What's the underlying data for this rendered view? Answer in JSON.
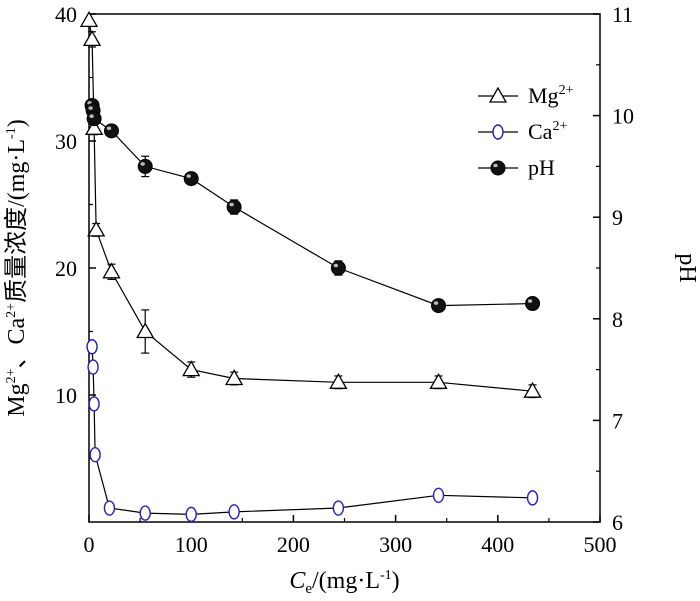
{
  "chart_data": {
    "type": "line",
    "x_axis": {
      "title_main": "C",
      "title_sub": "e",
      "title_rest": "/(mg·L",
      "title_sup": "-1",
      "title_end": ")",
      "range": [
        0,
        500
      ],
      "ticks": [
        "0",
        "100",
        "200",
        "300",
        "400",
        "500"
      ]
    },
    "y_axis_left": {
      "title_parts": [
        "Mg",
        "2+",
        "、Ca",
        "2+",
        "质量浓度/(mg·L",
        "-1",
        ")"
      ],
      "range": [
        0,
        40
      ],
      "ticks": [
        "10",
        "20",
        "30",
        "40"
      ]
    },
    "y_axis_right": {
      "title": "pH",
      "range": [
        6,
        11
      ],
      "ticks": [
        "6",
        "7",
        "8",
        "9",
        "10",
        "11"
      ]
    },
    "legend": {
      "placement": "top-right",
      "items": [
        {
          "label": "Mg",
          "sup": "2+",
          "marker": "triangle"
        },
        {
          "label": "Ca",
          "sup": "2+",
          "marker": "circle-open-blue"
        },
        {
          "label": "pH",
          "sup": "",
          "marker": "circle-filled"
        }
      ]
    },
    "series": [
      {
        "key": "mg",
        "axis": "left",
        "marker": "triangle",
        "color": "#000000",
        "x": [
          0,
          3,
          5,
          7,
          22,
          55,
          100,
          142,
          244,
          342,
          434
        ],
        "y": [
          39.5,
          38,
          31,
          23,
          19.7,
          15,
          12,
          11.3,
          11,
          11,
          10.3
        ],
        "err": [
          0,
          0.6,
          0.5,
          0.5,
          0.6,
          1.7,
          0.6,
          0.5,
          0.5,
          0.5,
          0.5
        ]
      },
      {
        "key": "ca",
        "axis": "left",
        "marker": "circle-open",
        "color": "#2323b8",
        "x": [
          3,
          4,
          5,
          6,
          20,
          55,
          100,
          142,
          244,
          342,
          434
        ],
        "y": [
          13.8,
          12.2,
          9.3,
          5.3,
          1.1,
          0.7,
          0.6,
          0.8,
          1.1,
          2.1,
          1.9
        ],
        "err": [
          0.2,
          0.2,
          0.2,
          0.3,
          0.3,
          0.3,
          0.3,
          0.3,
          0.4,
          0.3,
          0.3
        ]
      },
      {
        "key": "ph",
        "axis": "right",
        "marker": "circle-filled",
        "color": "#000000",
        "x": [
          3,
          4,
          5,
          22,
          55,
          100,
          142,
          244,
          342,
          434
        ],
        "y": [
          10.1,
          10.05,
          9.97,
          9.85,
          9.5,
          9.38,
          9.1,
          8.5,
          8.13,
          8.15
        ],
        "err": [
          0.04,
          0.04,
          0.04,
          0.05,
          0.1,
          0.05,
          0.07,
          0.07,
          0.05,
          0.04
        ]
      }
    ]
  }
}
